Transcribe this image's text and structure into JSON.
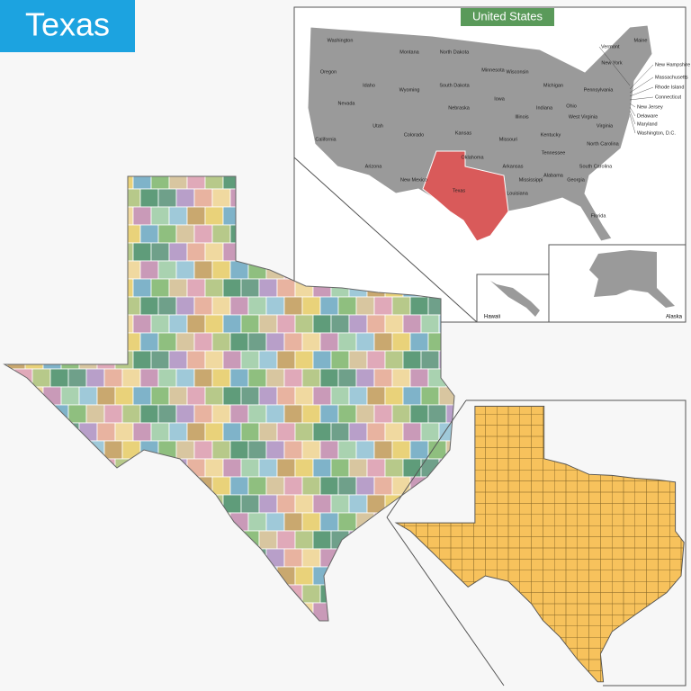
{
  "title": "Texas",
  "us_map": {
    "title": "United States",
    "states": [
      "Washington",
      "Montana",
      "North Dakota",
      "Minnesota",
      "Oregon",
      "Idaho",
      "Wyoming",
      "South Dakota",
      "Wisconsin",
      "Michigan",
      "Nevada",
      "Utah",
      "Colorado",
      "Nebraska",
      "Iowa",
      "Illinois",
      "Indiana",
      "Ohio",
      "Pennsylvania",
      "New York",
      "Maine",
      "California",
      "Kansas",
      "Missouri",
      "Kentucky",
      "Virginia",
      "West Virginia",
      "Arizona",
      "New Mexico",
      "Oklahoma",
      "Arkansas",
      "Tennessee",
      "North Carolina",
      "South Carolina",
      "Mississippi",
      "Alabama",
      "Georgia",
      "Louisiana",
      "Florida",
      "Texas"
    ],
    "small_states": [
      "Vermont",
      "New Hampshire",
      "Massachusetts",
      "Rhode Island",
      "Connecticut",
      "New Jersey",
      "Delaware",
      "Maryland",
      "Washington, D.C."
    ],
    "insets": [
      "Hawaii",
      "Alaska"
    ]
  }
}
